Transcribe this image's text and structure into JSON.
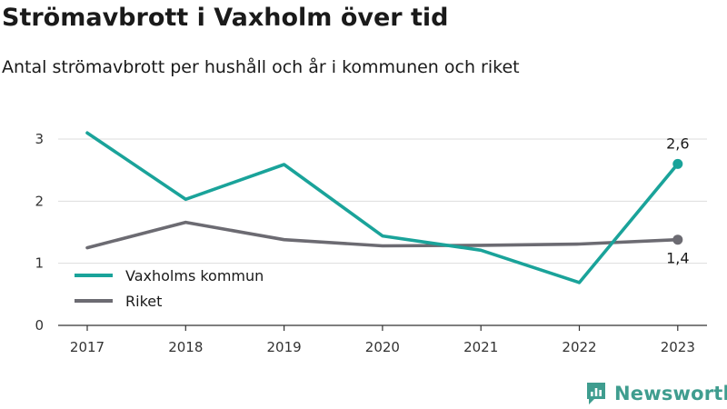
{
  "header": {
    "title": "Strömavbrott i Vaxholm över tid",
    "subtitle": "Antal strömavbrott per hushåll och år i kommunen och riket"
  },
  "brand": {
    "name": "Newsworthy",
    "color": "#3f9d8f",
    "icon": "newsworthy-logo-icon"
  },
  "colors": {
    "grid": "#dddddd",
    "axis": "#333333"
  },
  "chart_data": {
    "type": "line",
    "title": "Strömavbrott i Vaxholm över tid",
    "subtitle": "Antal strömavbrott per hushåll och år i kommunen och riket",
    "xlabel": "",
    "ylabel": "",
    "x": [
      "2017",
      "2018",
      "2019",
      "2020",
      "2021",
      "2022",
      "2023"
    ],
    "ylim": [
      0,
      3.3
    ],
    "yticks": [
      0,
      1,
      2,
      3
    ],
    "grid": true,
    "legend_position": "bottom-left",
    "series": [
      {
        "name": "Vaxholms kommun",
        "color": "#1aa39a",
        "values": [
          3.1,
          2.03,
          2.59,
          1.44,
          1.21,
          0.69,
          2.6
        ],
        "end_label": "2,6"
      },
      {
        "name": "Riket",
        "color": "#6c6b72",
        "values": [
          1.25,
          1.66,
          1.38,
          1.28,
          1.29,
          1.31,
          1.38
        ],
        "end_label": "1,4"
      }
    ]
  }
}
